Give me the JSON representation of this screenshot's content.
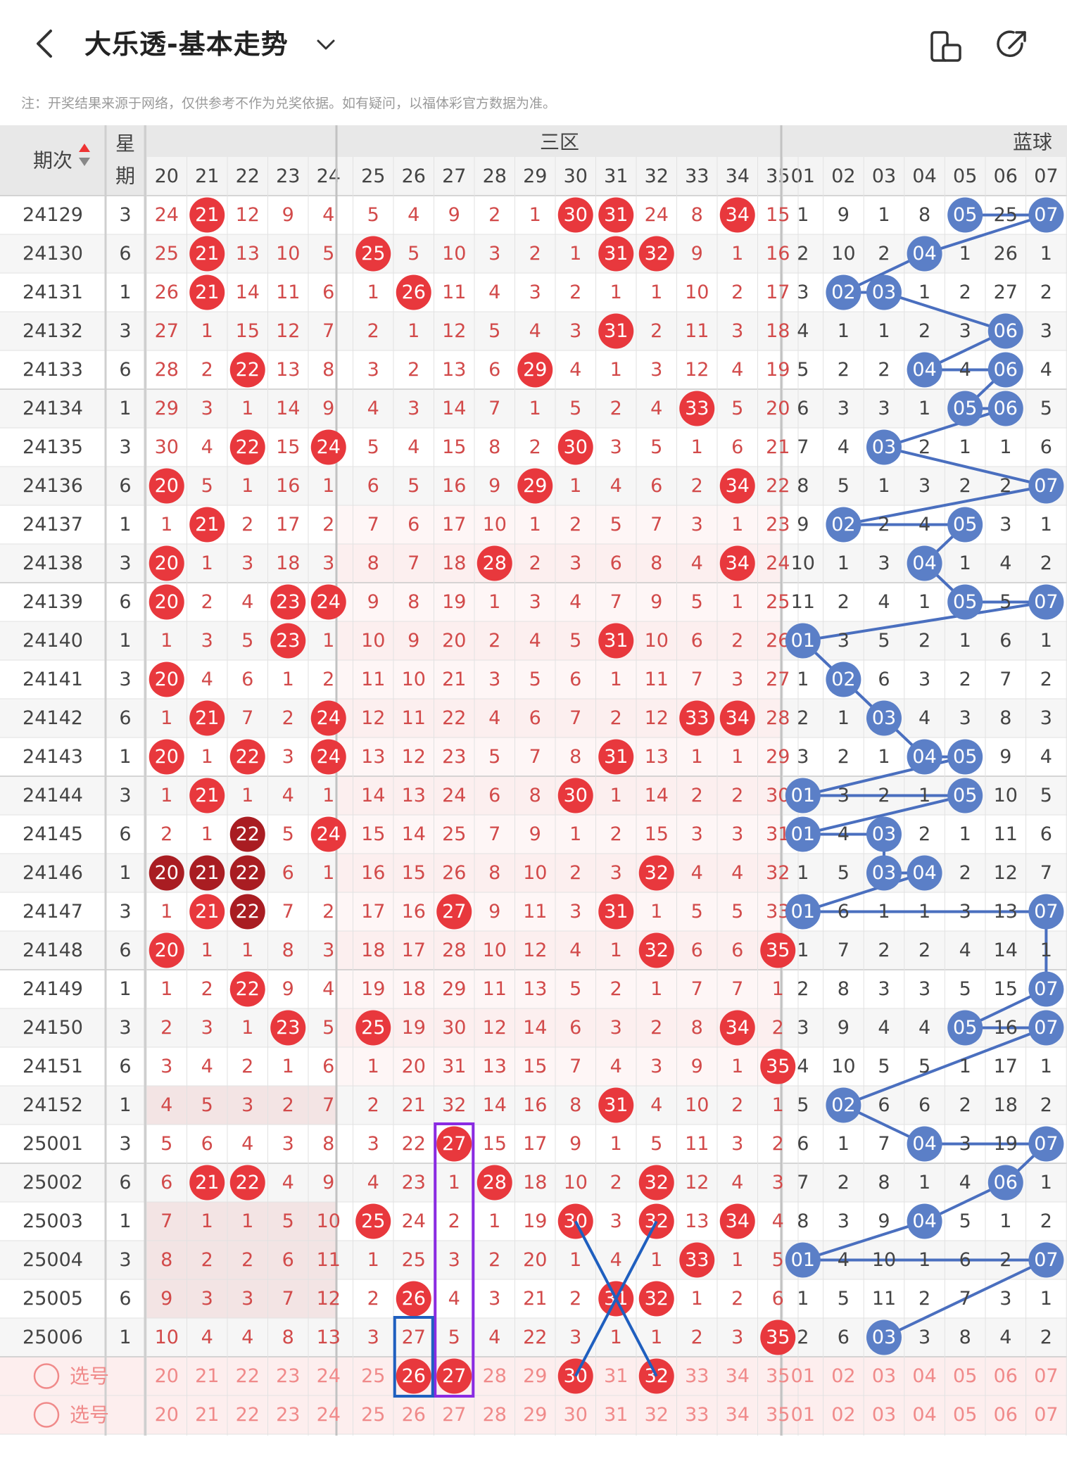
{
  "header": {
    "title": "大乐透-基本走势",
    "back_icon": "chevron-left-icon",
    "dropdown_icon": "chevron-down-icon",
    "actions": [
      {
        "icon": "phone-rotate-icon"
      },
      {
        "icon": "share-icon"
      }
    ]
  },
  "notice": "注：开奖结果来源于网络，仅供参考不作为兑奖依据。如有疑问，以福体彩官方数据为准。",
  "table": {
    "issue_header": "期次",
    "weekday_header": [
      "星",
      "期"
    ],
    "zone_label": "三区",
    "blue_label": "蓝球",
    "front_cols": [
      "20",
      "21",
      "22",
      "23",
      "24",
      "25",
      "26",
      "27",
      "28",
      "29",
      "30",
      "31",
      "32",
      "33",
      "34",
      "35"
    ],
    "blue_cols": [
      "01",
      "02",
      "03",
      "04",
      "05",
      "06",
      "07"
    ],
    "select_label": "选号",
    "rows": [
      {
        "issue": "24129",
        "wk": "3",
        "front": [
          "24",
          "21",
          "12",
          "9",
          "4",
          "5",
          "4",
          "9",
          "2",
          "1",
          "30",
          "31",
          "24",
          "8",
          "34",
          "15"
        ],
        "blue": [
          "1",
          "9",
          "1",
          "8",
          "05",
          "25",
          "07"
        ]
      },
      {
        "issue": "24130",
        "wk": "6",
        "front": [
          "25",
          "21",
          "13",
          "10",
          "5",
          "25",
          "5",
          "10",
          "3",
          "2",
          "1",
          "31",
          "32",
          "9",
          "1",
          "16"
        ],
        "blue": [
          "2",
          "10",
          "2",
          "04",
          "1",
          "26",
          "1"
        ]
      },
      {
        "issue": "24131",
        "wk": "1",
        "front": [
          "26",
          "21",
          "14",
          "11",
          "6",
          "1",
          "26",
          "11",
          "4",
          "3",
          "2",
          "1",
          "1",
          "10",
          "2",
          "17"
        ],
        "blue": [
          "3",
          "02",
          "03",
          "1",
          "2",
          "27",
          "2"
        ]
      },
      {
        "issue": "24132",
        "wk": "3",
        "front": [
          "27",
          "1",
          "15",
          "12",
          "7",
          "2",
          "1",
          "12",
          "5",
          "4",
          "3",
          "31",
          "2",
          "11",
          "3",
          "18"
        ],
        "blue": [
          "4",
          "1",
          "1",
          "2",
          "3",
          "06",
          "3"
        ]
      },
      {
        "issue": "24133",
        "wk": "6",
        "front": [
          "28",
          "2",
          "22",
          "13",
          "8",
          "3",
          "2",
          "13",
          "6",
          "29",
          "4",
          "1",
          "3",
          "12",
          "4",
          "19"
        ],
        "blue": [
          "5",
          "2",
          "2",
          "04",
          "4",
          "06",
          "4"
        ]
      },
      {
        "issue": "24134",
        "wk": "1",
        "front": [
          "29",
          "3",
          "1",
          "14",
          "9",
          "4",
          "3",
          "14",
          "7",
          "1",
          "5",
          "2",
          "4",
          "33",
          "5",
          "20"
        ],
        "blue": [
          "6",
          "3",
          "3",
          "1",
          "05",
          "06",
          "5"
        ]
      },
      {
        "issue": "24135",
        "wk": "3",
        "front": [
          "30",
          "4",
          "22",
          "15",
          "24",
          "5",
          "4",
          "15",
          "8",
          "2",
          "30",
          "3",
          "5",
          "1",
          "6",
          "21"
        ],
        "blue": [
          "7",
          "4",
          "03",
          "2",
          "1",
          "1",
          "6"
        ]
      },
      {
        "issue": "24136",
        "wk": "6",
        "front": [
          "20",
          "5",
          "1",
          "16",
          "1",
          "6",
          "5",
          "16",
          "9",
          "29",
          "1",
          "4",
          "6",
          "2",
          "34",
          "22"
        ],
        "blue": [
          "8",
          "5",
          "1",
          "3",
          "2",
          "2",
          "07"
        ]
      },
      {
        "issue": "24137",
        "wk": "1",
        "front": [
          "1",
          "21",
          "2",
          "17",
          "2",
          "7",
          "6",
          "17",
          "10",
          "1",
          "2",
          "5",
          "7",
          "3",
          "1",
          "23"
        ],
        "blue": [
          "9",
          "02",
          "2",
          "4",
          "05",
          "3",
          "1"
        ]
      },
      {
        "issue": "24138",
        "wk": "3",
        "front": [
          "20",
          "1",
          "3",
          "18",
          "3",
          "8",
          "7",
          "18",
          "28",
          "2",
          "3",
          "6",
          "8",
          "4",
          "34",
          "24"
        ],
        "blue": [
          "10",
          "1",
          "3",
          "04",
          "1",
          "4",
          "2"
        ]
      },
      {
        "issue": "24139",
        "wk": "6",
        "front": [
          "20",
          "2",
          "4",
          "23",
          "24",
          "9",
          "8",
          "19",
          "1",
          "3",
          "4",
          "7",
          "9",
          "5",
          "1",
          "25"
        ],
        "blue": [
          "11",
          "2",
          "4",
          "1",
          "05",
          "5",
          "07"
        ]
      },
      {
        "issue": "24140",
        "wk": "1",
        "front": [
          "1",
          "3",
          "5",
          "23",
          "1",
          "10",
          "9",
          "20",
          "2",
          "4",
          "5",
          "31",
          "10",
          "6",
          "2",
          "26"
        ],
        "blue": [
          "01",
          "3",
          "5",
          "2",
          "1",
          "6",
          "1"
        ]
      },
      {
        "issue": "24141",
        "wk": "3",
        "front": [
          "20",
          "4",
          "6",
          "1",
          "2",
          "11",
          "10",
          "21",
          "3",
          "5",
          "6",
          "1",
          "11",
          "7",
          "3",
          "27"
        ],
        "blue": [
          "1",
          "02",
          "6",
          "3",
          "2",
          "7",
          "2"
        ]
      },
      {
        "issue": "24142",
        "wk": "6",
        "front": [
          "1",
          "21",
          "7",
          "2",
          "24",
          "12",
          "11",
          "22",
          "4",
          "6",
          "7",
          "2",
          "12",
          "33",
          "34",
          "28"
        ],
        "blue": [
          "2",
          "1",
          "03",
          "4",
          "3",
          "8",
          "3"
        ]
      },
      {
        "issue": "24143",
        "wk": "1",
        "front": [
          "20",
          "1",
          "22",
          "3",
          "24",
          "13",
          "12",
          "23",
          "5",
          "7",
          "8",
          "31",
          "13",
          "1",
          "1",
          "29"
        ],
        "blue": [
          "3",
          "2",
          "1",
          "04",
          "05",
          "9",
          "4"
        ]
      },
      {
        "issue": "24144",
        "wk": "3",
        "front": [
          "1",
          "21",
          "1",
          "4",
          "1",
          "14",
          "13",
          "24",
          "6",
          "8",
          "30",
          "1",
          "14",
          "2",
          "2",
          "30"
        ],
        "blue": [
          "01",
          "3",
          "2",
          "1",
          "05",
          "10",
          "5"
        ]
      },
      {
        "issue": "24145",
        "wk": "6",
        "front": [
          "2",
          "1",
          "22",
          "5",
          "24",
          "15",
          "14",
          "25",
          "7",
          "9",
          "1",
          "2",
          "15",
          "3",
          "3",
          "31"
        ],
        "blue": [
          "01",
          "4",
          "03",
          "2",
          "1",
          "11",
          "6"
        ]
      },
      {
        "issue": "24146",
        "wk": "1",
        "front": [
          "20",
          "21",
          "22",
          "6",
          "1",
          "16",
          "15",
          "26",
          "8",
          "10",
          "2",
          "3",
          "32",
          "4",
          "4",
          "32"
        ],
        "blue": [
          "1",
          "5",
          "03",
          "04",
          "2",
          "12",
          "7"
        ]
      },
      {
        "issue": "24147",
        "wk": "3",
        "front": [
          "1",
          "21",
          "22",
          "7",
          "2",
          "17",
          "16",
          "27",
          "9",
          "11",
          "3",
          "31",
          "1",
          "5",
          "5",
          "33"
        ],
        "blue": [
          "01",
          "6",
          "1",
          "1",
          "3",
          "13",
          "07"
        ]
      },
      {
        "issue": "24148",
        "wk": "6",
        "front": [
          "20",
          "1",
          "1",
          "8",
          "3",
          "18",
          "17",
          "28",
          "10",
          "12",
          "4",
          "1",
          "32",
          "6",
          "6",
          "35"
        ],
        "blue": [
          "1",
          "7",
          "2",
          "2",
          "4",
          "14",
          "1"
        ]
      },
      {
        "issue": "24149",
        "wk": "1",
        "front": [
          "1",
          "2",
          "22",
          "9",
          "4",
          "19",
          "18",
          "29",
          "11",
          "13",
          "5",
          "2",
          "1",
          "7",
          "7",
          "1"
        ],
        "blue": [
          "2",
          "8",
          "3",
          "3",
          "5",
          "15",
          "07"
        ]
      },
      {
        "issue": "24150",
        "wk": "3",
        "front": [
          "2",
          "3",
          "1",
          "23",
          "5",
          "25",
          "19",
          "30",
          "12",
          "14",
          "6",
          "3",
          "2",
          "8",
          "34",
          "2"
        ],
        "blue": [
          "3",
          "9",
          "4",
          "4",
          "05",
          "16",
          "07"
        ]
      },
      {
        "issue": "24151",
        "wk": "6",
        "front": [
          "3",
          "4",
          "2",
          "1",
          "6",
          "1",
          "20",
          "31",
          "13",
          "15",
          "7",
          "4",
          "3",
          "9",
          "1",
          "35"
        ],
        "blue": [
          "4",
          "10",
          "5",
          "5",
          "1",
          "17",
          "1"
        ]
      },
      {
        "issue": "24152",
        "wk": "1",
        "front": [
          "4",
          "5",
          "3",
          "2",
          "7",
          "2",
          "21",
          "32",
          "14",
          "16",
          "8",
          "31",
          "4",
          "10",
          "2",
          "1"
        ],
        "blue": [
          "5",
          "02",
          "6",
          "6",
          "2",
          "18",
          "2"
        ]
      },
      {
        "issue": "25001",
        "wk": "3",
        "front": [
          "5",
          "6",
          "4",
          "3",
          "8",
          "3",
          "22",
          "27",
          "15",
          "17",
          "9",
          "1",
          "5",
          "11",
          "3",
          "2"
        ],
        "blue": [
          "6",
          "1",
          "7",
          "04",
          "3",
          "19",
          "07"
        ]
      },
      {
        "issue": "25002",
        "wk": "6",
        "front": [
          "6",
          "21",
          "22",
          "4",
          "9",
          "4",
          "23",
          "1",
          "28",
          "18",
          "10",
          "2",
          "32",
          "12",
          "4",
          "3"
        ],
        "blue": [
          "7",
          "2",
          "8",
          "1",
          "4",
          "06",
          "1"
        ]
      },
      {
        "issue": "25003",
        "wk": "1",
        "front": [
          "7",
          "1",
          "1",
          "5",
          "10",
          "25",
          "24",
          "2",
          "1",
          "19",
          "30",
          "3",
          "32",
          "13",
          "34",
          "4"
        ],
        "blue": [
          "8",
          "3",
          "9",
          "04",
          "5",
          "1",
          "2"
        ]
      },
      {
        "issue": "25004",
        "wk": "3",
        "front": [
          "8",
          "2",
          "2",
          "6",
          "11",
          "1",
          "25",
          "3",
          "2",
          "20",
          "1",
          "4",
          "1",
          "33",
          "1",
          "5"
        ],
        "blue": [
          "01",
          "4",
          "10",
          "1",
          "6",
          "2",
          "07"
        ]
      },
      {
        "issue": "25005",
        "wk": "6",
        "front": [
          "9",
          "3",
          "3",
          "7",
          "12",
          "2",
          "26",
          "4",
          "3",
          "21",
          "2",
          "31",
          "32",
          "1",
          "2",
          "6"
        ],
        "blue": [
          "1",
          "5",
          "11",
          "2",
          "7",
          "3",
          "1"
        ]
      },
      {
        "issue": "25006",
        "wk": "1",
        "front": [
          "10",
          "4",
          "4",
          "8",
          "13",
          "3",
          "27",
          "5",
          "4",
          "22",
          "3",
          "1",
          "1",
          "2",
          "3",
          "35"
        ],
        "blue": [
          "2",
          "6",
          "03",
          "3",
          "8",
          "4",
          "2"
        ]
      }
    ],
    "predict_row": {
      "front_hits": [
        "26",
        "27",
        "30",
        "32"
      ]
    },
    "bottom_header": {
      "weekday": "星",
      "zone_label": "三区",
      "blue_label": "蓝球",
      "issue_dash": "-"
    }
  },
  "colors": {
    "red_ball": "#e8383d",
    "dark_red_ball": "#a91d22",
    "blue_ball": "#5b7fc7",
    "line_blue": "#4a6fbf",
    "header_bg": "#e8e8e8",
    "pink_row": "#fdeeee",
    "purple_box": "#8a2be2",
    "select_text": "#f08a8a"
  }
}
